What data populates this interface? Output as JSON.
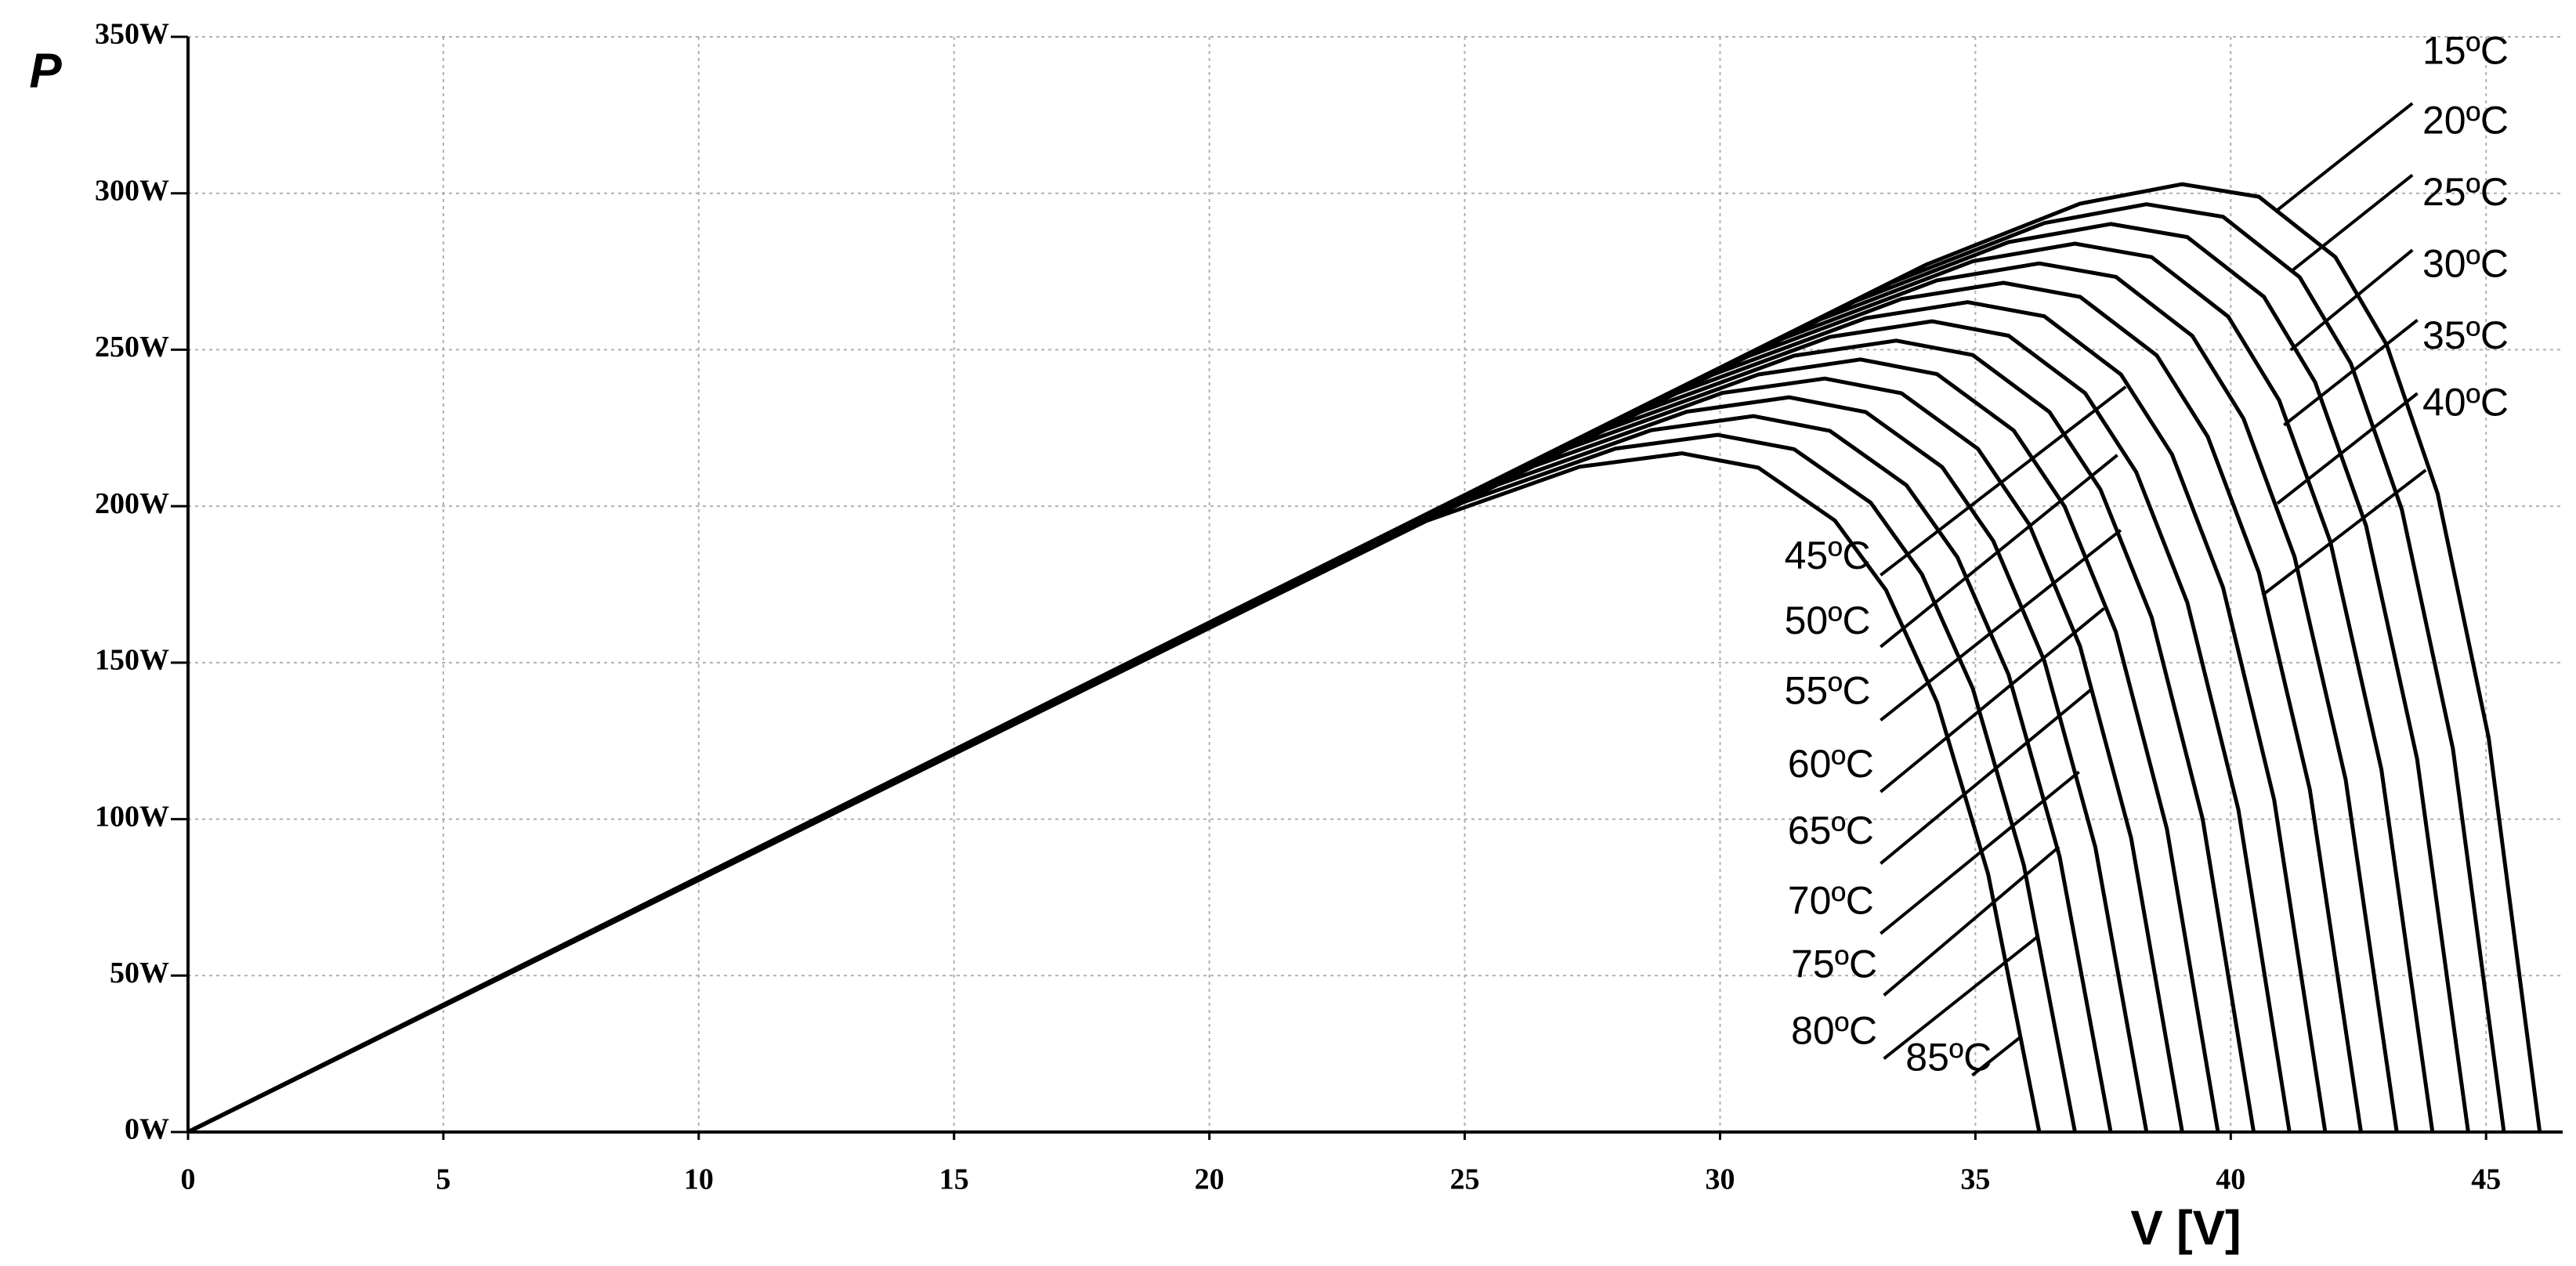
{
  "chart_data": {
    "type": "line",
    "y_label": "P",
    "x_label": "V [V]",
    "xlim": [
      0,
      46.5
    ],
    "xticks": [
      0,
      5,
      10,
      15,
      20,
      25,
      30,
      35,
      40,
      45
    ],
    "ylim": [
      0,
      350
    ],
    "yticks": [
      {
        "value": 0,
        "label": "0W"
      },
      {
        "value": 50,
        "label": "50W"
      },
      {
        "value": 100,
        "label": "100W"
      },
      {
        "value": 150,
        "label": "150W"
      },
      {
        "value": 200,
        "label": "200W"
      },
      {
        "value": 250,
        "label": "250W"
      },
      {
        "value": 300,
        "label": "300W"
      },
      {
        "value": 350,
        "label": "350W"
      }
    ],
    "grid": true,
    "series": [
      {
        "name": "15ºC",
        "color": "#000000",
        "x": [
          0,
          34.05,
          37.05,
          39.05,
          40.55,
          42.05,
          43.05,
          44.05,
          45.05,
          46.05
        ],
        "values": [
          0,
          277.3,
          296.7,
          302.9,
          298.9,
          279.6,
          251.7,
          204.1,
          126.0,
          0
        ]
      },
      {
        "name": "20ºC",
        "color": "#000000",
        "x": [
          0,
          33.35,
          36.35,
          38.35,
          39.85,
          41.35,
          42.35,
          43.35,
          44.35,
          45.35
        ],
        "values": [
          0,
          271.4,
          290.5,
          296.5,
          292.5,
          273.2,
          245.7,
          198.9,
          122.5,
          0
        ]
      },
      {
        "name": "25ºC",
        "color": "#000000",
        "x": [
          0,
          32.65,
          35.65,
          37.65,
          39.15,
          40.65,
          41.65,
          42.65,
          43.65,
          44.65
        ],
        "values": [
          0,
          265.5,
          284.4,
          290.2,
          286.0,
          266.9,
          239.7,
          193.8,
          119.2,
          0
        ]
      },
      {
        "name": "30ºC",
        "color": "#000000",
        "x": [
          0,
          31.95,
          34.95,
          36.95,
          38.45,
          39.95,
          40.95,
          41.95,
          42.95,
          43.95
        ],
        "values": [
          0,
          259.6,
          278.3,
          283.9,
          279.6,
          260.6,
          233.8,
          188.7,
          115.9,
          0
        ]
      },
      {
        "name": "35ºC",
        "color": "#000000",
        "x": [
          0,
          31.25,
          34.25,
          36.25,
          37.75,
          39.25,
          40.25,
          41.25,
          42.25,
          43.25
        ],
        "values": [
          0,
          253.7,
          272.2,
          277.6,
          273.3,
          254.4,
          228.0,
          183.8,
          112.6,
          0
        ]
      },
      {
        "name": "40ºC",
        "color": "#000000",
        "x": [
          0,
          30.55,
          33.55,
          35.55,
          37.05,
          38.55,
          39.55,
          40.55,
          41.55,
          42.55
        ],
        "values": [
          0,
          247.9,
          266.2,
          271.4,
          266.9,
          248.2,
          222.2,
          178.8,
          109.4,
          0
        ]
      },
      {
        "name": "45ºC",
        "color": "#000000",
        "x": [
          0,
          29.85,
          32.85,
          34.85,
          36.35,
          37.85,
          38.85,
          39.85,
          40.85,
          41.85
        ],
        "values": [
          0,
          242.0,
          260.1,
          265.2,
          260.7,
          242.1,
          216.5,
          174.0,
          106.2,
          0
        ]
      },
      {
        "name": "50ºC",
        "color": "#000000",
        "x": [
          0,
          29.15,
          32.15,
          34.15,
          35.65,
          37.15,
          38.15,
          39.15,
          40.15,
          41.15
        ],
        "values": [
          0,
          236.1,
          254.1,
          259.1,
          254.5,
          236.1,
          210.9,
          169.2,
          103.0,
          0
        ]
      },
      {
        "name": "55ºC",
        "color": "#000000",
        "x": [
          0,
          28.45,
          31.45,
          33.45,
          34.95,
          36.45,
          37.45,
          38.45,
          39.45,
          40.45
        ],
        "values": [
          0,
          230.2,
          248.1,
          252.9,
          248.3,
          230.1,
          205.3,
          164.5,
          100.0,
          0
        ]
      },
      {
        "name": "60ºC",
        "color": "#000000",
        "x": [
          0,
          27.75,
          30.75,
          32.75,
          34.25,
          35.75,
          36.75,
          37.75,
          38.75,
          39.75
        ],
        "values": [
          0,
          224.4,
          242.1,
          246.9,
          242.2,
          224.2,
          199.8,
          159.8,
          96.9,
          0
        ]
      },
      {
        "name": "65ºC",
        "color": "#000000",
        "x": [
          0,
          27.05,
          30.05,
          32.05,
          33.55,
          35.05,
          36.05,
          37.05,
          38.05,
          39.05
        ],
        "values": [
          0,
          218.6,
          236.2,
          240.8,
          236.1,
          218.3,
          194.3,
          155.2,
          93.9,
          0
        ]
      },
      {
        "name": "70ºC",
        "color": "#000000",
        "x": [
          0,
          26.35,
          29.35,
          31.35,
          32.85,
          34.35,
          35.35,
          36.35,
          37.35,
          38.35
        ],
        "values": [
          0,
          212.8,
          230.2,
          234.8,
          230.1,
          212.5,
          188.9,
          150.6,
          90.9,
          0
        ]
      },
      {
        "name": "75ºC",
        "color": "#000000",
        "x": [
          0,
          25.65,
          28.65,
          30.65,
          32.15,
          33.65,
          34.65,
          35.65,
          36.65,
          37.65
        ],
        "values": [
          0,
          206.9,
          224.3,
          228.8,
          224.1,
          206.7,
          183.6,
          146.1,
          88.0,
          0
        ]
      },
      {
        "name": "80ºC",
        "color": "#000000",
        "x": [
          0,
          24.95,
          27.95,
          29.95,
          31.45,
          32.95,
          33.95,
          34.95,
          35.95,
          36.95
        ],
        "values": [
          0,
          201.1,
          218.4,
          222.8,
          218.2,
          201.1,
          178.3,
          141.7,
          85.2,
          0
        ]
      },
      {
        "name": "85ºC",
        "color": "#000000",
        "x": [
          0,
          24.25,
          27.25,
          29.25,
          30.75,
          32.25,
          33.25,
          34.25,
          35.25,
          36.25
        ],
        "values": [
          0,
          195.3,
          212.6,
          216.9,
          212.3,
          195.4,
          173.2,
          137.3,
          82.4,
          0
        ]
      }
    ]
  }
}
